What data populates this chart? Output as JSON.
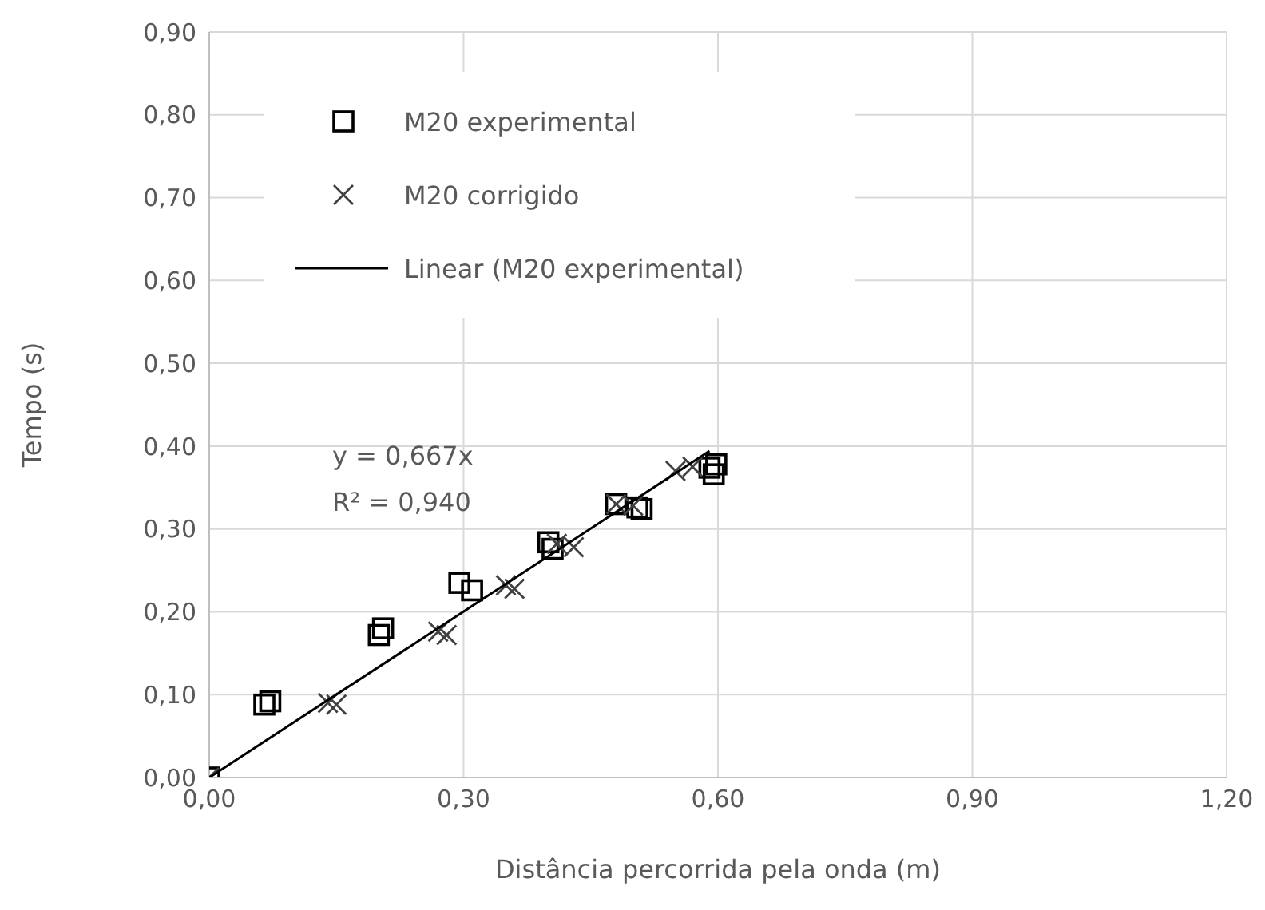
{
  "chart_data": {
    "type": "scatter",
    "xlabel": "Distância percorrida pela onda (m)",
    "ylabel": "Tempo  (s)",
    "xlim": [
      0,
      1.2
    ],
    "xticks": [
      {
        "value": 0,
        "label": "0,00"
      },
      {
        "value": 0.3,
        "label": "0,30"
      },
      {
        "value": 0.6,
        "label": "0,60"
      },
      {
        "value": 0.9,
        "label": "0,90"
      },
      {
        "value": 1.2,
        "label": "1,20"
      }
    ],
    "ylim": [
      0,
      0.9
    ],
    "yticks": [
      {
        "value": 0,
        "label": "0,00"
      },
      {
        "value": 0.1,
        "label": "0,10"
      },
      {
        "value": 0.2,
        "label": "0,20"
      },
      {
        "value": 0.3,
        "label": "0,30"
      },
      {
        "value": 0.4,
        "label": "0,40"
      },
      {
        "value": 0.5,
        "label": "0,50"
      },
      {
        "value": 0.6,
        "label": "0,60"
      },
      {
        "value": 0.7,
        "label": "0,70"
      },
      {
        "value": 0.8,
        "label": "0,80"
      },
      {
        "value": 0.9,
        "label": "0,90"
      }
    ],
    "grid": true,
    "legend": "top left",
    "annotations": [
      "y = 0,667x",
      "R² = 0,940"
    ],
    "series": [
      {
        "name": "M20 experimental",
        "type": "scatter",
        "marker": "square",
        "color": "#000000",
        "x": [
          0,
          0.065,
          0.072,
          0.2,
          0.205,
          0.295,
          0.31,
          0.4,
          0.405,
          0.48,
          0.505,
          0.51,
          0.59,
          0.595,
          0.598
        ],
        "values": [
          0,
          0.088,
          0.092,
          0.172,
          0.18,
          0.235,
          0.226,
          0.284,
          0.276,
          0.33,
          0.326,
          0.324,
          0.374,
          0.366,
          0.378
        ]
      },
      {
        "name": "M20 corrigido",
        "type": "scatter",
        "marker": "cross",
        "color": "#404040",
        "x": [
          0,
          0.14,
          0.15,
          0.27,
          0.28,
          0.35,
          0.36,
          0.41,
          0.43,
          0.48,
          0.5,
          0.55,
          0.57
        ],
        "values": [
          0,
          0.09,
          0.088,
          0.176,
          0.172,
          0.232,
          0.228,
          0.282,
          0.278,
          0.33,
          0.328,
          0.37,
          0.375
        ]
      },
      {
        "name": "Linear (M20 experimental)",
        "type": "line",
        "marker": "none",
        "line_style": "solid",
        "color": "#000000",
        "x": [
          0,
          0.59
        ],
        "values": [
          0,
          0.394
        ]
      }
    ]
  }
}
